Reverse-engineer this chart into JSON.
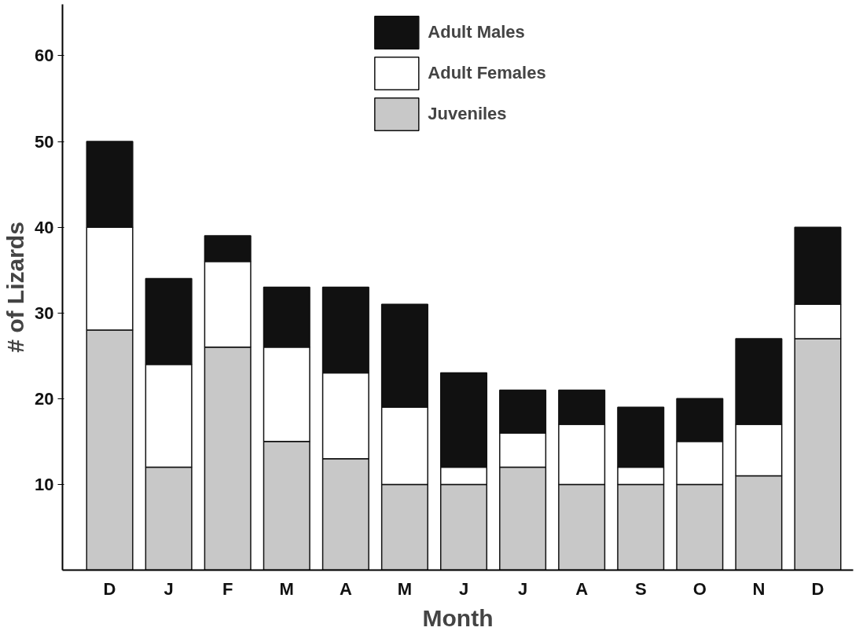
{
  "chart_data": {
    "type": "bar",
    "stacked": true,
    "xlabel": "Month",
    "ylabel": "# of Lizards",
    "categories": [
      "D",
      "J",
      "F",
      "M",
      "A",
      "M",
      "J",
      "J",
      "A",
      "S",
      "O",
      "N",
      "D"
    ],
    "series": [
      {
        "name": "Juveniles",
        "color": "#c8c8c8",
        "values": [
          28,
          12,
          26,
          15,
          13,
          10,
          10,
          12,
          10,
          10,
          10,
          11,
          27
        ]
      },
      {
        "name": "Adult Females",
        "color": "#ffffff",
        "values": [
          12,
          12,
          10,
          11,
          10,
          9,
          2,
          4,
          7,
          2,
          5,
          6,
          4
        ]
      },
      {
        "name": "Adult Males",
        "color": "#111111",
        "values": [
          10,
          10,
          3,
          7,
          10,
          12,
          11,
          5,
          4,
          7,
          5,
          10,
          9
        ]
      }
    ],
    "ylim": [
      0,
      66
    ],
    "yticks": [
      10,
      20,
      30,
      40,
      50,
      60
    ],
    "grid": false,
    "legend": "top"
  }
}
